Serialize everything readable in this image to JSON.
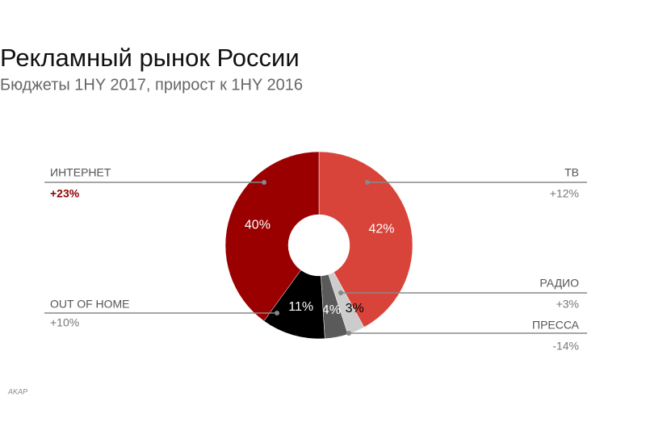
{
  "chart_data": {
    "type": "pie",
    "title": "Рекламный рынок России",
    "subtitle": "Бюджеты 1HY 2017, прирост к 1HY 2016",
    "source": "AKAP",
    "series": [
      {
        "name": "ТВ",
        "color": "#d9443a",
        "values": [
          42
        ],
        "value_labels": [
          "42%"
        ],
        "growth": "+12%"
      },
      {
        "name": "РАДИО",
        "color": "#cccccc",
        "values": [
          3
        ],
        "value_labels": [
          "3%"
        ],
        "growth": "+3%"
      },
      {
        "name": "ПРЕССА",
        "color": "#5a5a5a",
        "values": [
          4
        ],
        "value_labels": [
          "4%"
        ],
        "growth": "-14%"
      },
      {
        "name": "OUT OF HOME",
        "color": "#000000",
        "values": [
          11
        ],
        "value_labels": [
          "11%"
        ],
        "growth": "+10%"
      },
      {
        "name": "ИНТЕРНЕТ",
        "color": "#9b0000",
        "values": [
          40
        ],
        "value_labels": [
          "40%"
        ],
        "growth": "+23%"
      }
    ]
  }
}
